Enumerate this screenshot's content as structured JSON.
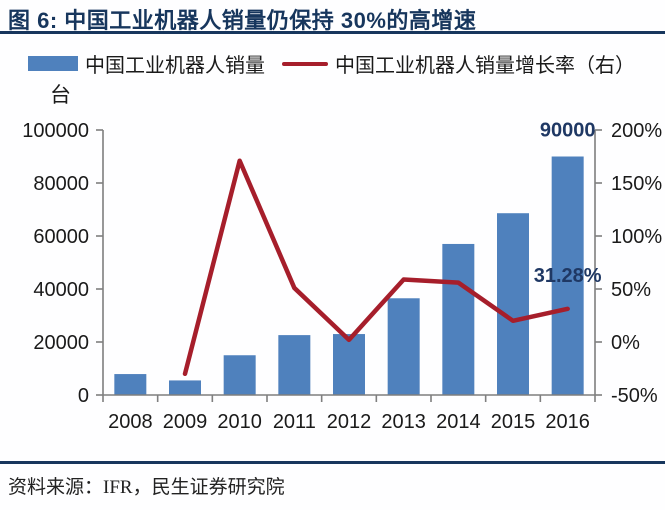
{
  "panel": {
    "title": "图 6: 中国工业机器人销量仍保持 30%的高增速",
    "source": "资料来源：IFR，民生证券研究院"
  },
  "legend": {
    "bar_label": "中国工业机器人销量",
    "line_label": "中国工业机器人销量增长率（右）"
  },
  "colors": {
    "bar": "#4F81BD",
    "line": "#A61E2B",
    "navy": "#17365D",
    "axis": "#7F7F7F",
    "tick_text": "#1A1A1A",
    "annotation": "#1F3864"
  },
  "chart_data": {
    "type": "bar",
    "subtype": "bar+line combo, dual axis",
    "title": "图 6: 中国工业机器人销量仍保持 30%的高增速",
    "categories": [
      "2008",
      "2009",
      "2010",
      "2011",
      "2012",
      "2013",
      "2014",
      "2015",
      "2016"
    ],
    "series": [
      {
        "name": "中国工业机器人销量",
        "type": "bar",
        "axis": "left",
        "unit": "台",
        "values": [
          7900,
          5500,
          15000,
          22600,
          23000,
          36500,
          57000,
          68600,
          90000
        ]
      },
      {
        "name": "中国工业机器人销量增长率（右）",
        "type": "line",
        "axis": "right",
        "unit": "%",
        "values": [
          null,
          -30,
          171,
          51,
          2,
          59,
          56,
          20,
          31.28
        ]
      }
    ],
    "left_axis": {
      "title": "台",
      "min": 0,
      "max": 100000,
      "tick_step": 20000,
      "tick_labels": [
        "0",
        "20000",
        "40000",
        "60000",
        "80000",
        "100000"
      ]
    },
    "right_axis": {
      "min": -50,
      "max": 200,
      "tick_step": 50,
      "tick_labels": [
        "-50%",
        "0%",
        "50%",
        "100%",
        "150%",
        "200%"
      ]
    },
    "annotations": [
      {
        "text": "90000",
        "target": "bar",
        "category": "2016"
      },
      {
        "text": "31.28%",
        "target": "line",
        "category": "2016"
      }
    ],
    "grid": false,
    "legend_position": "top"
  }
}
